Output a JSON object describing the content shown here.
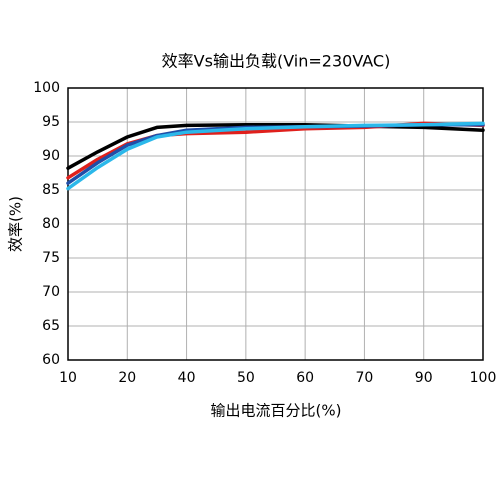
{
  "chart_data": {
    "type": "line",
    "title": "效率Vs输出负载(Vin=230VAC)",
    "x_label": "输出电流百分比(%)",
    "y_label": "效率(%)",
    "x": [
      10,
      15,
      20,
      30,
      40,
      50,
      60,
      70,
      90,
      100
    ],
    "series": [
      {
        "color": "#000000",
        "values": [
          88.2,
          90.6,
          92.8,
          94.2,
          94.5,
          94.6,
          94.6,
          94.4,
          94.2,
          93.8
        ]
      },
      {
        "color": "#e0201c",
        "values": [
          86.8,
          89.5,
          91.8,
          93.0,
          93.3,
          93.5,
          94.0,
          94.2,
          94.8,
          94.5
        ]
      },
      {
        "color": "#1f4ea8",
        "values": [
          86.0,
          89.0,
          91.6,
          93.0,
          93.8,
          94.2,
          94.3,
          94.4,
          94.6,
          94.6
        ]
      },
      {
        "color": "#2bb8ea",
        "values": [
          85.2,
          88.3,
          91.0,
          92.8,
          93.5,
          94.0,
          94.3,
          94.5,
          94.6,
          94.8
        ]
      }
    ],
    "xlim": [
      10,
      100
    ],
    "xticks": [
      10,
      20,
      40,
      50,
      60,
      70,
      90,
      100
    ],
    "ylim": [
      60,
      100
    ],
    "yticks": [
      60,
      65,
      70,
      75,
      80,
      85,
      90,
      95,
      100
    ],
    "grid": true
  }
}
